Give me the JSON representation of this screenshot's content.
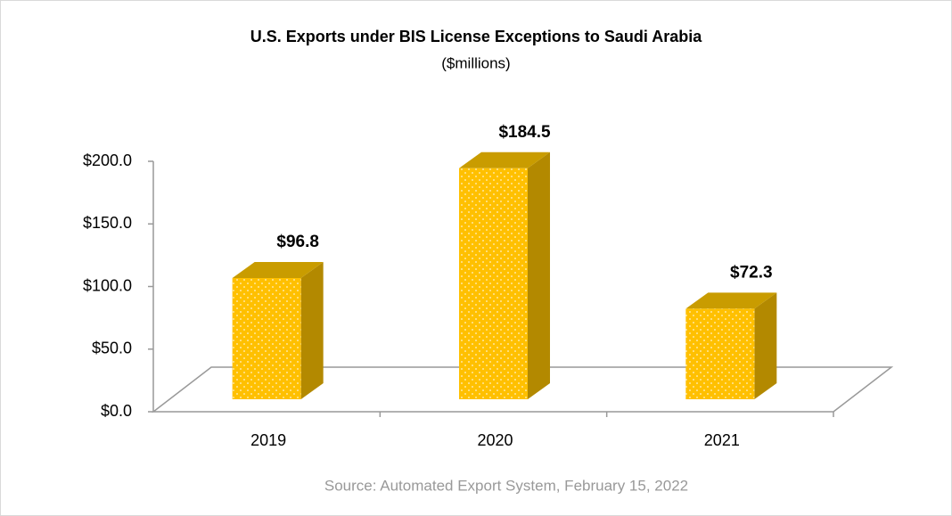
{
  "chart_data": {
    "type": "bar3d",
    "title": "U.S. Exports under BIS License Exceptions to Saudi Arabia",
    "subtitle": "($millions)",
    "source": "Source: Automated Export System, February 15, 2022",
    "categories": [
      "2019",
      "2020",
      "2021"
    ],
    "values": [
      96.8,
      184.5,
      72.3
    ],
    "value_labels": [
      "$96.8",
      "$184.5",
      "$72.3"
    ],
    "color": "#FFC000",
    "ylim": [
      0,
      200
    ],
    "yticks": [
      {
        "value": 0,
        "label": "$0.0"
      },
      {
        "value": 50,
        "label": "$50.0"
      },
      {
        "value": 100,
        "label": "$100.0"
      },
      {
        "value": 150,
        "label": "$150.0"
      },
      {
        "value": 200,
        "label": "$200.0"
      }
    ],
    "grid": false
  }
}
